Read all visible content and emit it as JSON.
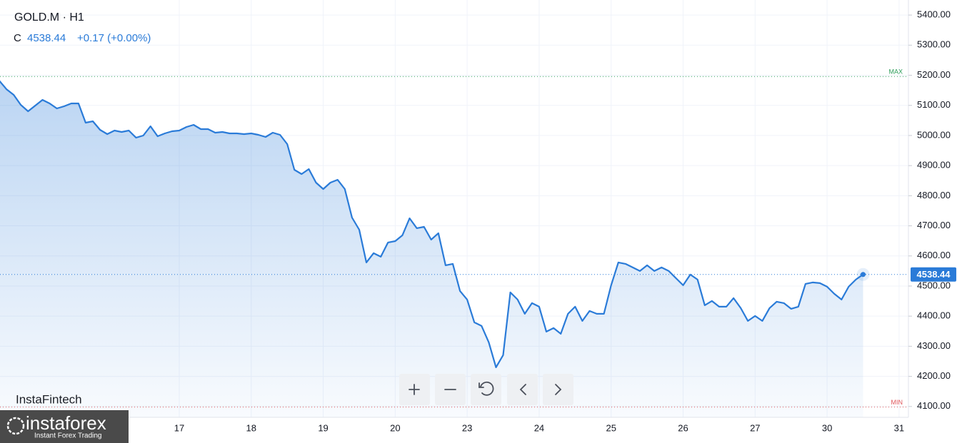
{
  "chart_data": {
    "type": "area",
    "symbol": "GOLD.M · H1",
    "price_prefix": "C",
    "change": "+0.17 (+0.00%)",
    "watermark": "InstaFintech",
    "logo": {
      "name": "instaforex",
      "tagline": "Instant Forex Trading"
    },
    "color": "#2a7bd8",
    "x": [
      -1.5,
      -1.4,
      -1.3,
      -1.2,
      -1.1,
      -1,
      -0.9,
      -0.8,
      -0.7,
      -0.6,
      -0.5,
      -0.4,
      -0.3,
      -0.2,
      -0.1,
      0,
      0.1,
      0.2,
      0.3,
      0.4,
      0.5,
      0.6,
      0.7,
      0.8,
      0.9,
      1,
      1.1,
      1.2,
      1.3,
      1.4,
      1.5,
      1.6,
      1.7,
      1.8,
      1.9,
      2,
      2.1,
      2.2,
      2.3,
      2.4,
      2.5,
      2.6,
      2.7,
      2.8,
      2.9,
      3,
      3.1,
      3.2,
      3.3,
      3.4,
      3.5,
      3.6,
      3.7,
      3.8,
      3.9,
      4,
      4.1,
      4.2,
      4.3,
      4.4,
      4.5,
      4.6,
      4.7,
      4.8,
      4.9,
      5,
      5.1,
      5.2,
      5.3,
      5.4,
      5.5,
      5.6,
      5.7,
      5.8,
      5.9,
      6,
      6.1,
      6.2,
      6.3,
      6.4,
      6.5,
      6.6,
      6.7,
      6.8,
      6.9,
      7,
      7.1,
      7.2,
      7.3,
      7.4,
      7.5,
      7.6,
      7.7,
      7.8,
      7.9,
      8,
      8.1,
      8.2,
      8.3,
      8.4,
      8.5,
      8.6,
      8.7,
      8.8,
      8.9,
      9,
      9.1,
      9.2,
      9.3,
      9.4,
      9.5,
      9.6,
      9.7,
      9.8,
      9.9,
      10,
      10.1,
      10.2,
      10.3,
      10.4,
      10.5
    ],
    "values": [
      5182.1,
      5153.7,
      5134.8,
      5101.6,
      5080.3,
      5099.3,
      5118.2,
      5106.4,
      5089.8,
      5096.9,
      5106.4,
      5106.4,
      5042.4,
      5047.2,
      5018.8,
      5004.5,
      5016.4,
      5011.6,
      5016.4,
      4992.7,
      4999.8,
      5030.6,
      4997.4,
      5006.9,
      5014,
      5016.4,
      5028.2,
      5035.3,
      5021.1,
      5021.1,
      5009.3,
      5011.6,
      5006.9,
      5006.9,
      5004.5,
      5006.9,
      5002.2,
      4995.1,
      5009.3,
      5002.2,
      4971.4,
      4886.1,
      4871.9,
      4888.5,
      4843.5,
      4822.2,
      4843.5,
      4853,
      4822.2,
      4727.5,
      4687.2,
      4578.3,
      4609.1,
      4597.2,
      4644.6,
      4649.3,
      4668.3,
      4725.1,
      4692,
      4696.7,
      4654.1,
      4675.4,
      4568.8,
      4573.6,
      4483.6,
      4455.2,
      4379.4,
      4367.6,
      4313.1,
      4230.2,
      4270.5,
      4478.8,
      4455.2,
      4407.8,
      4443.3,
      4431.5,
      4348.6,
      4360.4,
      4341.5,
      4407.8,
      4431.5,
      4384.1,
      4417.3,
      4407.8,
      4407.8,
      4502.5,
      4578.3,
      4573.6,
      4561.7,
      4549.9,
      4568.8,
      4549.9,
      4561.7,
      4549.9,
      4526.2,
      4502.5,
      4538,
      4521.5,
      4436.2,
      4450.4,
      4431.5,
      4431.5,
      4459.9,
      4426.8,
      4384.1,
      4400.7,
      4384.1,
      4426.8,
      4448.1,
      4443.3,
      4424.4,
      4431.5,
      4507.3,
      4512,
      4509.6,
      4497.8,
      4474.1,
      4455.2,
      4497.8,
      4521.5,
      4538.44
    ],
    "max_line": {
      "label": "MAX",
      "value": 5196,
      "color": "#2e9e5b"
    },
    "min_line": {
      "label": "MIN",
      "value": 4098,
      "color": "#e0565b"
    },
    "xlim": [
      -1.49,
      11.13
    ],
    "xticks": [
      {
        "value": 1,
        "label": "17"
      },
      {
        "value": 2,
        "label": "18"
      },
      {
        "value": 3,
        "label": "19"
      },
      {
        "value": 4,
        "label": "20"
      },
      {
        "value": 5,
        "label": "23"
      },
      {
        "value": 6,
        "label": "24"
      },
      {
        "value": 7,
        "label": "25"
      },
      {
        "value": 8,
        "label": "26"
      },
      {
        "value": 9,
        "label": "27"
      },
      {
        "value": 10,
        "label": "30"
      },
      {
        "value": 11,
        "label": "31"
      }
    ],
    "ylim": [
      4064,
      5450
    ],
    "yticks": [
      {
        "value": 4100,
        "label": "4100.00"
      },
      {
        "value": 4200,
        "label": "4200.00"
      },
      {
        "value": 4300,
        "label": "4300.00"
      },
      {
        "value": 4400,
        "label": "4400.00"
      },
      {
        "value": 4500,
        "label": "4500.00"
      },
      {
        "value": 4600,
        "label": "4600.00"
      },
      {
        "value": 4700,
        "label": "4700.00"
      },
      {
        "value": 4800,
        "label": "4800.00"
      },
      {
        "value": 4900,
        "label": "4900.00"
      },
      {
        "value": 5000,
        "label": "5000.00"
      },
      {
        "value": 5100,
        "label": "5100.00"
      },
      {
        "value": 5200,
        "label": "5200.00"
      },
      {
        "value": 5300,
        "label": "5300.00"
      },
      {
        "value": 5400,
        "label": "5400.00"
      }
    ],
    "grid": true
  }
}
